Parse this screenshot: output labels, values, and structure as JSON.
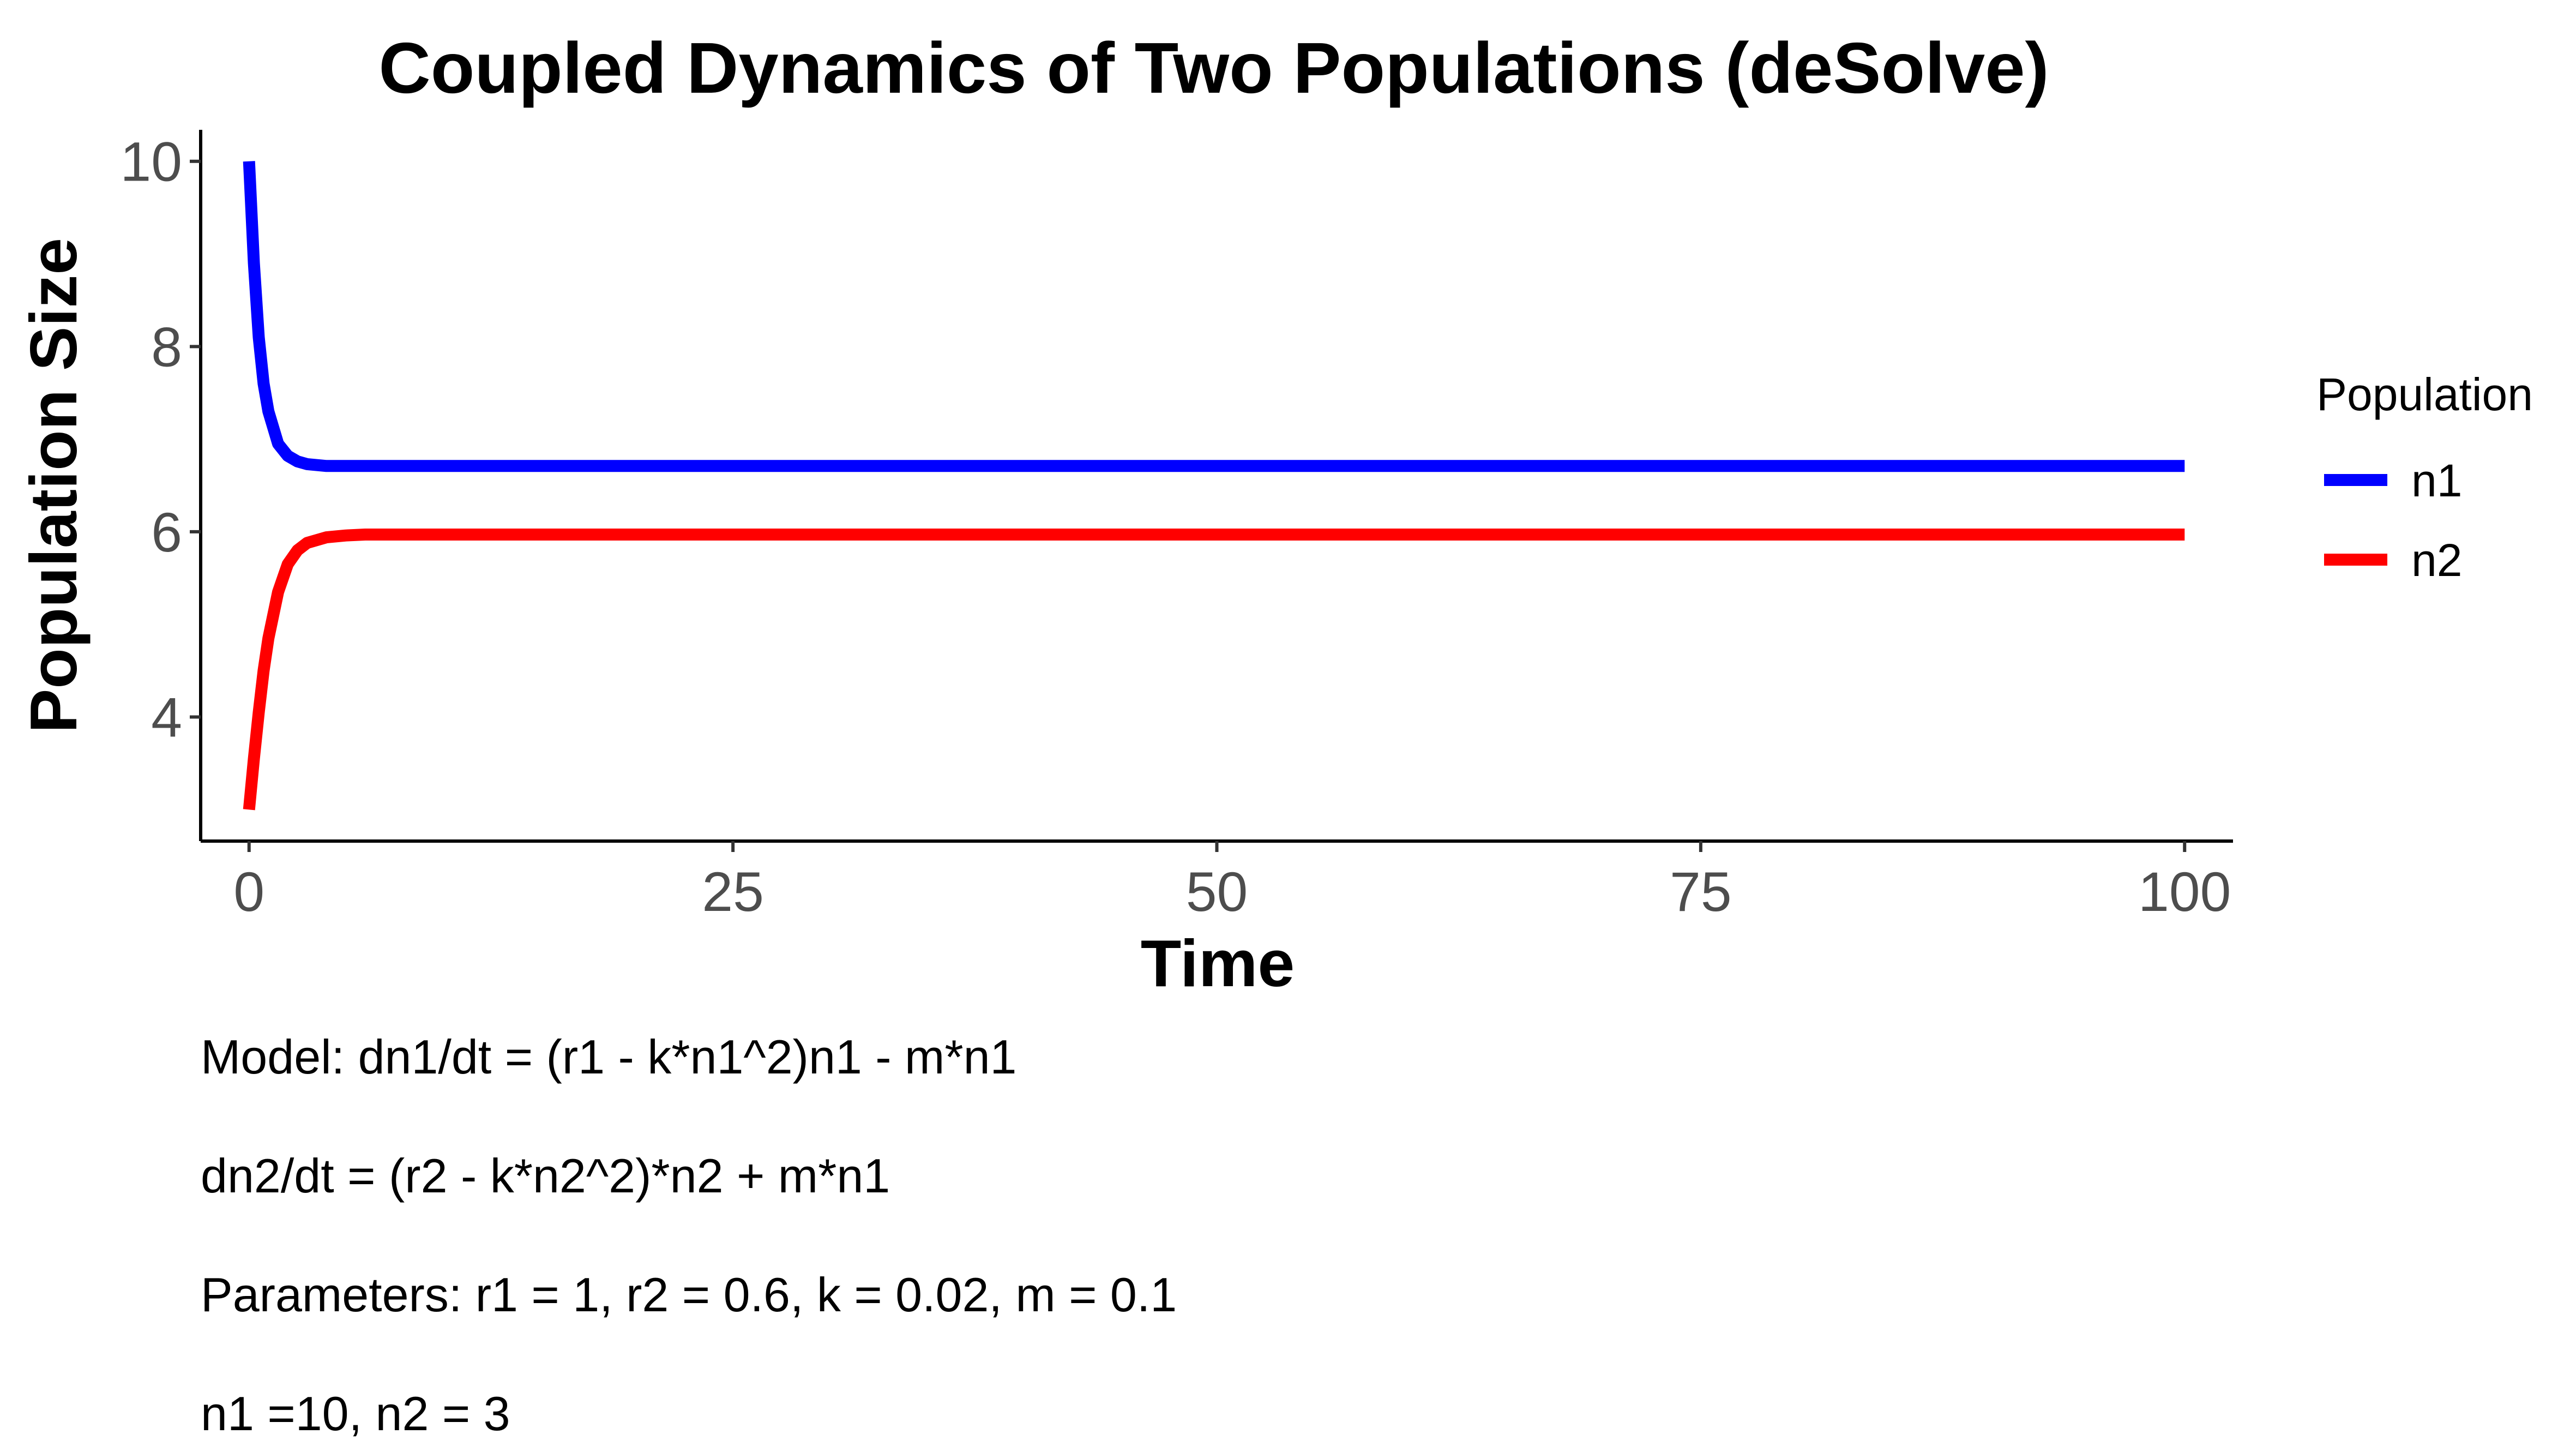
{
  "chart_data": {
    "type": "line",
    "title": "Coupled Dynamics of Two Populations (deSolve)",
    "xlabel": "Time",
    "ylabel": "Population Size",
    "xlim": [
      -2.5,
      102.5
    ],
    "ylim": [
      2.66,
      10.34
    ],
    "x_ticks": [
      0,
      25,
      50,
      75,
      100
    ],
    "x_tick_labels": [
      "0",
      "25",
      "50",
      "75",
      "100"
    ],
    "y_ticks": [
      4,
      6,
      8,
      10
    ],
    "y_tick_labels": [
      "4",
      "6",
      "8",
      "10"
    ],
    "grid": false,
    "legend": {
      "title": "Population",
      "placement": "right"
    },
    "x": [
      0,
      0.25,
      0.5,
      0.75,
      1,
      1.5,
      2,
      2.5,
      3,
      4,
      5,
      6,
      8,
      10,
      15,
      20,
      30,
      40,
      50,
      60,
      70,
      80,
      90,
      100
    ],
    "series": [
      {
        "name": "n1",
        "color": "#0000FF",
        "values": [
          10,
          8.9,
          8.1,
          7.6,
          7.3,
          6.95,
          6.82,
          6.76,
          6.73,
          6.71,
          6.71,
          6.71,
          6.71,
          6.71,
          6.71,
          6.71,
          6.71,
          6.71,
          6.71,
          6.71,
          6.71,
          6.71,
          6.71,
          6.71
        ]
      },
      {
        "name": "n2",
        "color": "#FF0000",
        "values": [
          3,
          3.55,
          4.05,
          4.5,
          4.85,
          5.35,
          5.65,
          5.8,
          5.88,
          5.94,
          5.96,
          5.97,
          5.97,
          5.97,
          5.97,
          5.97,
          5.97,
          5.97,
          5.97,
          5.97,
          5.97,
          5.97,
          5.97,
          5.97
        ]
      }
    ]
  },
  "caption": {
    "line1": "Model: dn1/dt = (r1 - k*n1^2)n1 - m*n1",
    "line2": "dn2/dt = (r2 - k*n2^2)*n2 + m*n1",
    "line3": "Parameters: r1 = 1, r2 = 0.6, k = 0.02, m = 0.1",
    "line4": "n1 =10, n2 = 3"
  }
}
